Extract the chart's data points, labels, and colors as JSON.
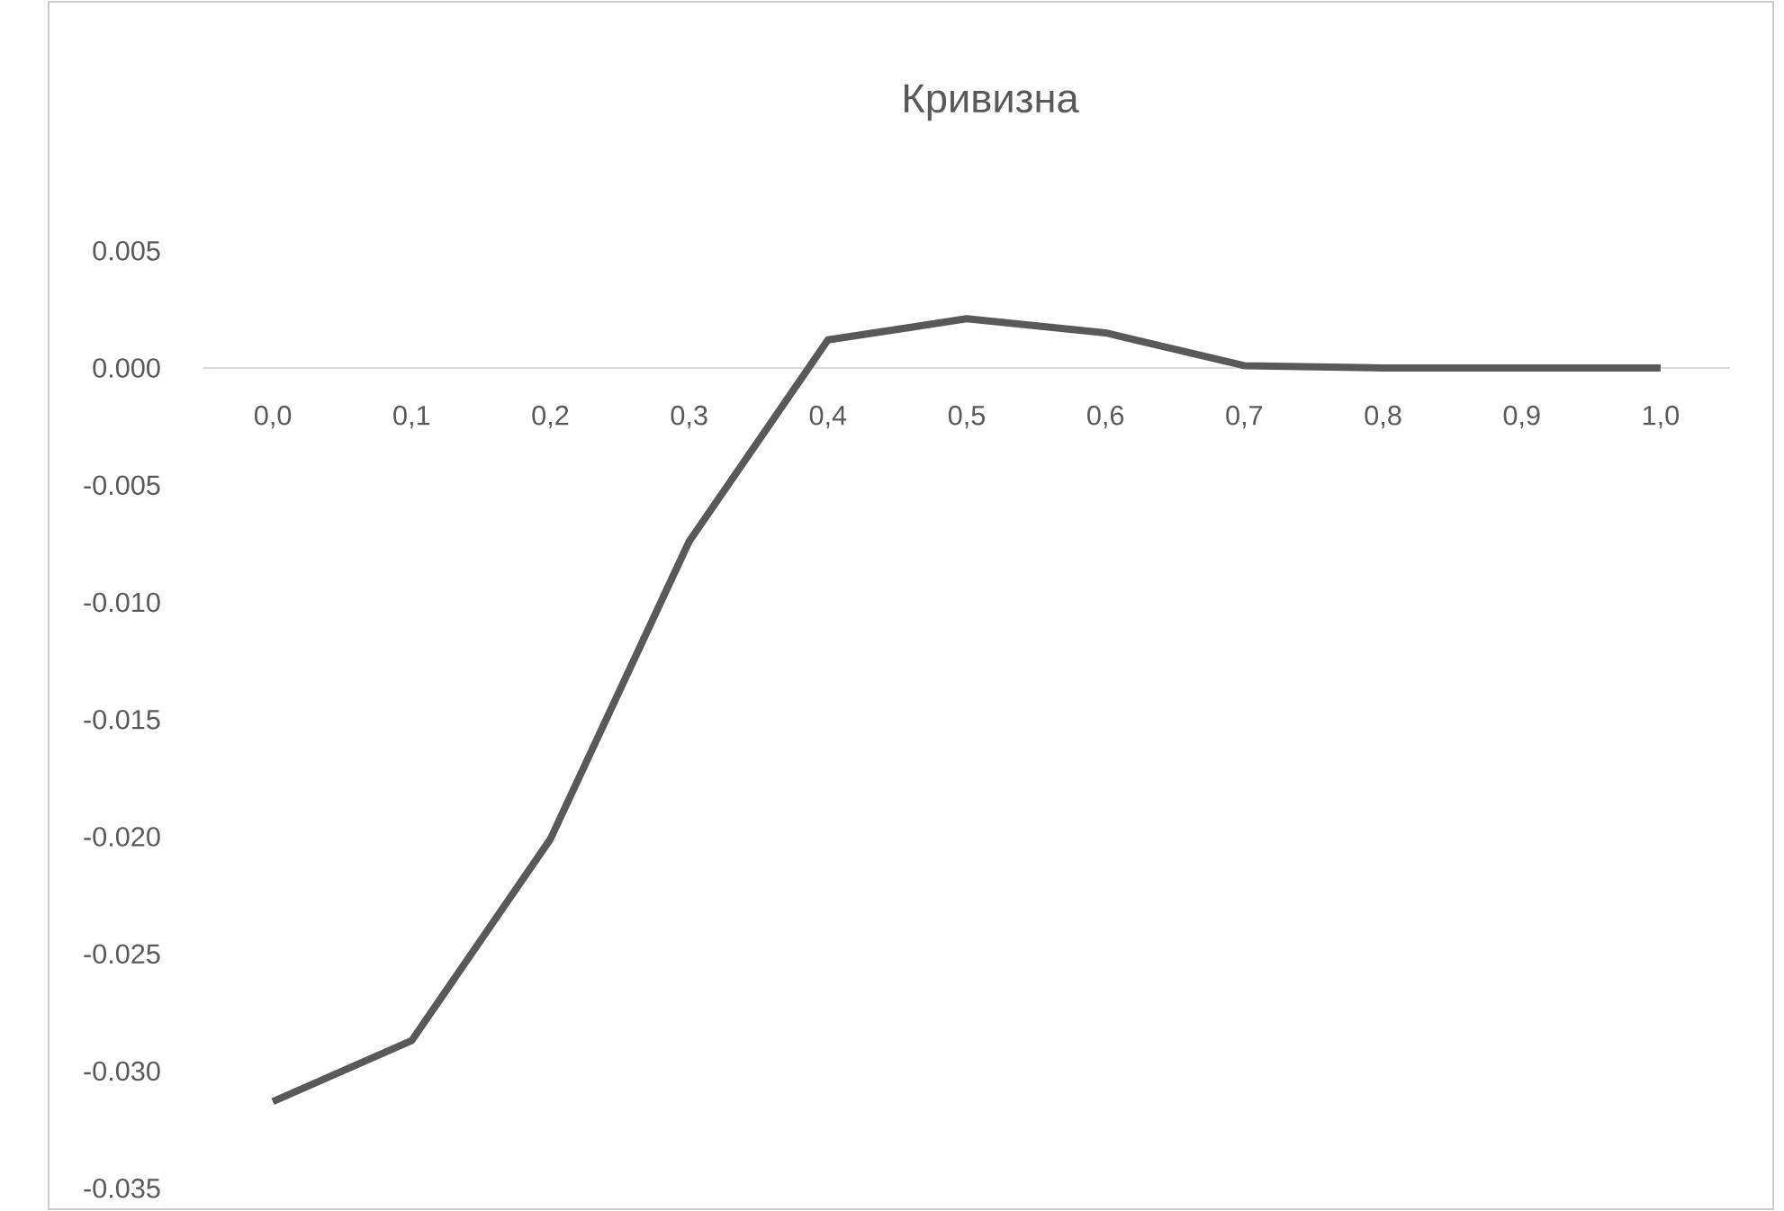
{
  "chart_data": {
    "type": "line",
    "title": "Кривизна",
    "categories": [
      "0,0",
      "0,1",
      "0,2",
      "0,3",
      "0,4",
      "0,5",
      "0,6",
      "0,7",
      "0,8",
      "0,9",
      "1,0"
    ],
    "series": [
      {
        "color": "#595959",
        "values": [
          -0.0313,
          -0.0287,
          -0.0201,
          -0.0074,
          0.0012,
          0.0021,
          0.0015,
          0.0001,
          0.0,
          0.0,
          0.0
        ]
      }
    ],
    "ylim": [
      -0.035,
      0.005
    ],
    "yticks": [
      {
        "value": -0.035,
        "label": "-0.035"
      },
      {
        "value": -0.03,
        "label": "-0.030"
      },
      {
        "value": -0.025,
        "label": "-0.025"
      },
      {
        "value": -0.02,
        "label": "-0.020"
      },
      {
        "value": -0.015,
        "label": "-0.015"
      },
      {
        "value": -0.01,
        "label": "-0.010"
      },
      {
        "value": -0.005,
        "label": "-0.005"
      },
      {
        "value": 0,
        "label": "0.000"
      },
      {
        "value": 0.005,
        "label": "0.005"
      }
    ],
    "grid": false,
    "marker": "none",
    "line_style": "solid"
  }
}
